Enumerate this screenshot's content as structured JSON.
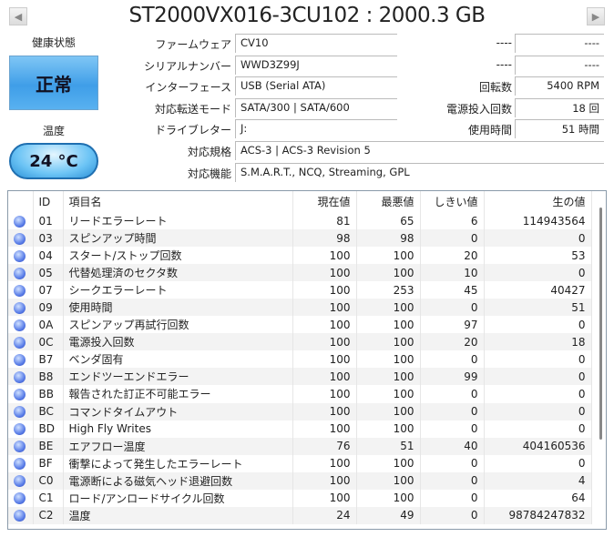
{
  "title": "ST2000VX016-3CU102 : 2000.3 GB",
  "nav": {
    "prev_icon": "triangle-left",
    "next_icon": "triangle-right"
  },
  "health": {
    "label": "健康状態",
    "status": "正常",
    "color": "#3f9ee8"
  },
  "temperature": {
    "label": "温度",
    "value": "24 °C"
  },
  "info": [
    {
      "label": "ファームウェア",
      "value": "CV10"
    },
    {
      "label": "シリアルナンバー",
      "value": "WWD3Z99J"
    },
    {
      "label": "インターフェース",
      "value": "USB (Serial ATA)"
    },
    {
      "label": "対応転送モード",
      "value": "SATA/300 | SATA/600"
    },
    {
      "label": "ドライブレター",
      "value": "J:"
    }
  ],
  "info_right": [
    {
      "label": "----",
      "value": "----"
    },
    {
      "label": "----",
      "value": "----"
    },
    {
      "label": "回転数",
      "value": "5400 RPM"
    },
    {
      "label": "電源投入回数",
      "value": "18 回"
    },
    {
      "label": "使用時間",
      "value": "51 時間"
    }
  ],
  "info_wide": [
    {
      "label": "対応規格",
      "value": "ACS-3 | ACS-3 Revision 5"
    },
    {
      "label": "対応機能",
      "value": "S.M.A.R.T., NCQ, Streaming, GPL"
    }
  ],
  "smart": {
    "headers": [
      "",
      "ID",
      "項目名",
      "現在値",
      "最悪値",
      "しきい値",
      "生の値"
    ],
    "status_color": "#5a7ee8",
    "rows": [
      [
        "01",
        "リードエラーレート",
        "81",
        "65",
        "6",
        "114943564"
      ],
      [
        "03",
        "スピンアップ時間",
        "98",
        "98",
        "0",
        "0"
      ],
      [
        "04",
        "スタート/ストップ回数",
        "100",
        "100",
        "20",
        "53"
      ],
      [
        "05",
        "代替処理済のセクタ数",
        "100",
        "100",
        "10",
        "0"
      ],
      [
        "07",
        "シークエラーレート",
        "100",
        "253",
        "45",
        "40427"
      ],
      [
        "09",
        "使用時間",
        "100",
        "100",
        "0",
        "51"
      ],
      [
        "0A",
        "スピンアップ再試行回数",
        "100",
        "100",
        "97",
        "0"
      ],
      [
        "0C",
        "電源投入回数",
        "100",
        "100",
        "20",
        "18"
      ],
      [
        "B7",
        "ベンダ固有",
        "100",
        "100",
        "0",
        "0"
      ],
      [
        "B8",
        "エンドツーエンドエラー",
        "100",
        "100",
        "99",
        "0"
      ],
      [
        "BB",
        "報告された訂正不可能エラー",
        "100",
        "100",
        "0",
        "0"
      ],
      [
        "BC",
        "コマンドタイムアウト",
        "100",
        "100",
        "0",
        "0"
      ],
      [
        "BD",
        "High Fly Writes",
        "100",
        "100",
        "0",
        "0"
      ],
      [
        "BE",
        "エアフロー温度",
        "76",
        "51",
        "40",
        "404160536"
      ],
      [
        "BF",
        "衝撃によって発生したエラーレート",
        "100",
        "100",
        "0",
        "0"
      ],
      [
        "C0",
        "電源断による磁気ヘッド退避回数",
        "100",
        "100",
        "0",
        "4"
      ],
      [
        "C1",
        "ロード/アンロードサイクル回数",
        "100",
        "100",
        "0",
        "64"
      ],
      [
        "C2",
        "温度",
        "24",
        "49",
        "0",
        "98784247832"
      ]
    ]
  }
}
